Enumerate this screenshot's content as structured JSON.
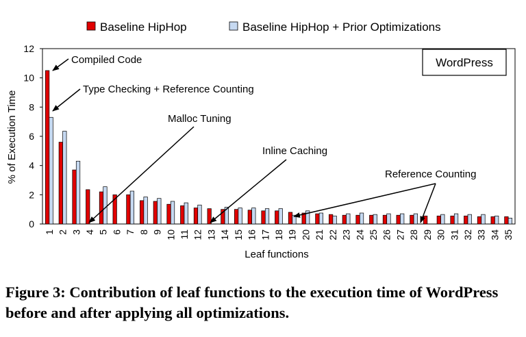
{
  "chart_data": {
    "type": "bar",
    "ylabel": "% of Execution Time",
    "xlabel": "Leaf functions",
    "ylim": [
      0,
      12
    ],
    "yticks": [
      0,
      2,
      4,
      6,
      8,
      10,
      12
    ],
    "grid": false,
    "legend_position": "top",
    "categories": [
      "1",
      "2",
      "3",
      "4",
      "5",
      "6",
      "7",
      "8",
      "9",
      "10",
      "11",
      "12",
      "13",
      "14",
      "15",
      "16",
      "17",
      "18",
      "19",
      "20",
      "21",
      "22",
      "23",
      "24",
      "25",
      "26",
      "27",
      "28",
      "29",
      "30",
      "31",
      "32",
      "33",
      "34",
      "35"
    ],
    "series": [
      {
        "name": "Baseline HipHop",
        "color": "#e00000",
        "values": [
          10.5,
          5.6,
          3.7,
          2.35,
          2.2,
          2.0,
          2.0,
          1.6,
          1.55,
          1.35,
          1.25,
          1.1,
          1.05,
          1.0,
          1.0,
          0.95,
          0.9,
          0.9,
          0.8,
          0.75,
          0.7,
          0.65,
          0.6,
          0.6,
          0.6,
          0.6,
          0.6,
          0.6,
          0.55,
          0.55,
          0.55,
          0.55,
          0.5,
          0.5,
          0.5
        ]
      },
      {
        "name": "Baseline HipHop + Prior Optimizations",
        "color": "#c6d9f1",
        "values": [
          7.3,
          6.35,
          4.3,
          0,
          2.55,
          0,
          2.25,
          1.85,
          1.75,
          1.55,
          1.45,
          1.3,
          0,
          1.15,
          1.1,
          1.1,
          1.05,
          1.05,
          0.6,
          0.9,
          0.75,
          0.55,
          0.7,
          0.75,
          0.65,
          0.7,
          0.7,
          0.7,
          0,
          0.65,
          0.7,
          0.65,
          0.65,
          0.55,
          0.4
        ]
      }
    ],
    "box_label": "WordPress",
    "annotations": [
      {
        "text": "Compiled Code",
        "target_bar": 1
      },
      {
        "text": "Type Checking + Reference Counting",
        "target_bar": 1
      },
      {
        "text": "Malloc Tuning",
        "target_bar": 4
      },
      {
        "text": "Inline Caching",
        "target_bar": 13
      },
      {
        "text": "Reference Counting",
        "target_bars": [
          19,
          29
        ]
      }
    ]
  },
  "caption": "Figure 3: Contribution of leaf functions to the execution time of WordPress before and after applying all optimizations."
}
